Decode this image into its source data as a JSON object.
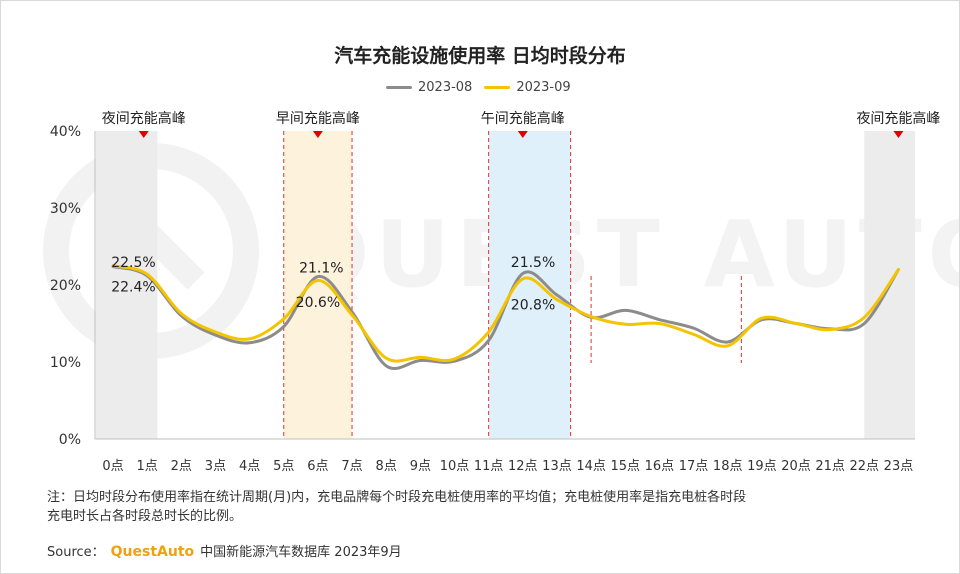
{
  "chart_data": {
    "type": "line",
    "title": "汽车充能设施使用率 日均时段分布",
    "categories": [
      "0点",
      "1点",
      "2点",
      "3点",
      "4点",
      "5点",
      "6点",
      "7点",
      "8点",
      "9点",
      "10点",
      "11点",
      "12点",
      "13点",
      "14点",
      "15点",
      "16点",
      "17点",
      "18点",
      "19点",
      "20点",
      "21点",
      "22点",
      "23点"
    ],
    "series": [
      {
        "name": "2023-08",
        "color": "#8c8c8c",
        "values": [
          22.4,
          21.2,
          16.0,
          13.5,
          12.5,
          14.6,
          21.1,
          16.5,
          9.5,
          10.2,
          10.1,
          12.8,
          21.5,
          18.7,
          15.8,
          16.7,
          15.5,
          14.4,
          12.6,
          15.5,
          15.0,
          14.3,
          15.0,
          22.0
        ]
      },
      {
        "name": "2023-09",
        "color": "#f5c400",
        "values": [
          22.5,
          21.4,
          16.3,
          13.9,
          13.0,
          15.6,
          20.6,
          16.1,
          10.5,
          10.6,
          10.4,
          13.9,
          20.8,
          18.1,
          15.9,
          14.9,
          15.0,
          13.6,
          12.1,
          15.7,
          15.0,
          14.2,
          15.8,
          22.0
        ]
      }
    ],
    "ylim": [
      0,
      40
    ],
    "yticks": [
      0,
      10,
      20,
      30,
      40
    ],
    "ytick_labels": [
      "0%",
      "10%",
      "20%",
      "30%",
      "40%"
    ],
    "legend": "top-center",
    "grid": false,
    "highlight_bands": [
      {
        "label": "夜间充能高峰",
        "start": -0.5,
        "end": 1.3,
        "fill": "#ececec",
        "dashed": false
      },
      {
        "label": "早间充能高峰",
        "start": 5.0,
        "end": 7.0,
        "fill": "#fdf3dd",
        "dashed": true
      },
      {
        "label": "午间充能高峰",
        "start": 11.0,
        "end": 13.4,
        "fill": "#dff0fa",
        "dashed": true
      },
      {
        "label": "夜间充能高峰",
        "start": 22.0,
        "end": 23.5,
        "fill": "#ececec",
        "dashed": false
      }
    ],
    "marker_positions": [
      0.9,
      6.0,
      12.0,
      23.0
    ],
    "extra_dashed_lines": [
      14.0,
      18.4
    ],
    "data_labels": [
      {
        "text": "22.5%",
        "x": 0.6,
        "y": 23.0
      },
      {
        "text": "22.4%",
        "x": 0.6,
        "y": 19.8
      },
      {
        "text": "21.1%",
        "x": 6.1,
        "y": 22.3
      },
      {
        "text": "20.6%",
        "x": 6.0,
        "y": 17.8
      },
      {
        "text": "21.5%",
        "x": 12.3,
        "y": 23.0
      },
      {
        "text": "20.8%",
        "x": 12.3,
        "y": 17.5
      }
    ]
  },
  "note": {
    "line1": "注：日均时段分布使用率指在统计周期(月)内，充电品牌每个时段充电桩使用率的平均值；充电桩使用率是指充电桩各时段",
    "line2": "充电时长占各时段总时长的比例。"
  },
  "source": {
    "label": "Source：",
    "brand": "QuestAuto",
    "text": "中国新能源汽车数据库 2023年9月"
  },
  "watermark": "QUEST AUTO"
}
